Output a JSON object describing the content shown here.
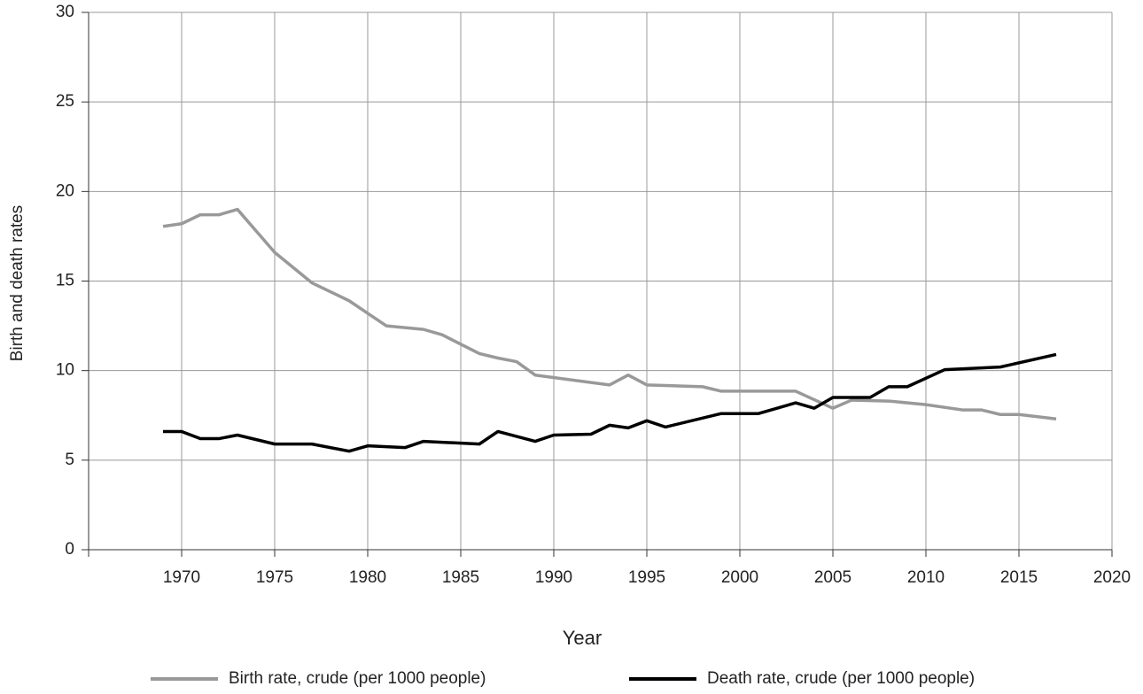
{
  "chart_data": {
    "type": "line",
    "xlabel": "Year",
    "ylabel": "Birth and death rates",
    "xlim": [
      1965,
      2020
    ],
    "xticks": [
      1970,
      1975,
      1980,
      1985,
      1990,
      1995,
      2000,
      2005,
      2010,
      2015,
      2020
    ],
    "ylim": [
      0,
      30
    ],
    "yticks": [
      0,
      5,
      10,
      15,
      20,
      25,
      30
    ],
    "grid": true,
    "legend": "bottom",
    "series": [
      {
        "name": "Birth rate, crude (per 1000 people)",
        "color": "#999999",
        "x": [
          1969,
          1970,
          1971,
          1972,
          1973,
          1975,
          1977,
          1979,
          1980,
          1981,
          1983,
          1984,
          1986,
          1987,
          1988,
          1989,
          1993,
          1994,
          1995,
          1998,
          1999,
          2003,
          2005,
          2006,
          2008,
          2010,
          2012,
          2013,
          2014,
          2015,
          2017
        ],
        "values": [
          18.05,
          18.2,
          18.7,
          18.7,
          19.0,
          16.6,
          14.9,
          13.9,
          13.2,
          12.5,
          12.3,
          12.0,
          10.95,
          10.7,
          10.5,
          9.75,
          9.2,
          9.75,
          9.2,
          9.1,
          8.85,
          8.85,
          7.9,
          8.35,
          8.3,
          8.1,
          7.8,
          7.8,
          7.55,
          7.55,
          7.3
        ]
      },
      {
        "name": "Death rate, crude (per 1000 people)",
        "color": "#000000",
        "x": [
          1969,
          1970,
          1971,
          1972,
          1973,
          1975,
          1977,
          1979,
          1980,
          1982,
          1983,
          1986,
          1987,
          1989,
          1990,
          1992,
          1993,
          1994,
          1995,
          1996,
          1999,
          2001,
          2003,
          2004,
          2005,
          2007,
          2008,
          2009,
          2011,
          2014,
          2017
        ],
        "values": [
          6.6,
          6.6,
          6.2,
          6.2,
          6.4,
          5.9,
          5.9,
          5.5,
          5.8,
          5.7,
          6.05,
          5.9,
          6.6,
          6.05,
          6.4,
          6.45,
          6.95,
          6.8,
          7.2,
          6.85,
          7.6,
          7.6,
          8.2,
          7.9,
          8.5,
          8.5,
          9.1,
          9.1,
          10.05,
          10.2,
          10.9
        ]
      }
    ]
  }
}
